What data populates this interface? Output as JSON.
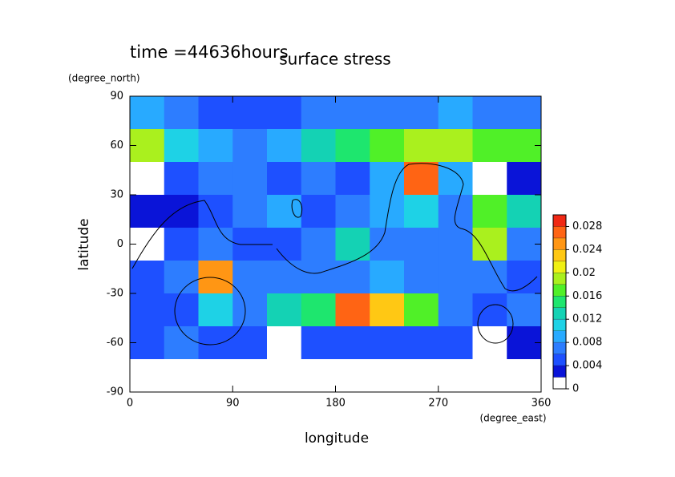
{
  "chart_data": {
    "type": "contour",
    "time_label": "time =44636hours",
    "title": "surface stress",
    "y_unit": "(degree_north)",
    "y_label": "latitude",
    "x_label": "longitude",
    "x_unit": "(degree_east)",
    "xlim": [
      0,
      360
    ],
    "xticks": [
      0,
      90,
      180,
      270,
      360
    ],
    "ylim": [
      -90,
      90
    ],
    "yticks": [
      -90,
      -60,
      -30,
      0,
      30,
      60,
      90
    ],
    "x": [
      15,
      45,
      75,
      105,
      135,
      165,
      195,
      225,
      255,
      285,
      315,
      345
    ],
    "y": [
      80,
      60,
      40,
      20,
      0,
      -20,
      -40,
      -60,
      -80
    ],
    "z": [
      [
        0.008,
        0.006,
        0.005,
        0.005,
        0.005,
        0.006,
        0.006,
        0.006,
        0.006,
        0.008,
        0.006,
        0.006
      ],
      [
        0.018,
        0.01,
        0.008,
        0.006,
        0.008,
        0.012,
        0.014,
        0.016,
        0.018,
        0.018,
        0.016,
        0.016
      ],
      [
        0.001,
        0.004,
        0.006,
        0.006,
        0.004,
        0.006,
        0.004,
        0.008,
        0.026,
        0.008,
        0.001,
        0.002
      ],
      [
        0.003,
        0.002,
        0.004,
        0.006,
        0.008,
        0.004,
        0.006,
        0.008,
        0.01,
        0.006,
        0.016,
        0.012
      ],
      [
        0.001,
        0.004,
        0.006,
        0.004,
        0.004,
        0.006,
        0.012,
        0.006,
        0.006,
        0.006,
        0.018,
        0.006
      ],
      [
        0.004,
        0.006,
        0.024,
        0.006,
        0.006,
        0.006,
        0.006,
        0.008,
        0.006,
        0.006,
        0.006,
        0.004
      ],
      [
        0.004,
        0.004,
        0.01,
        0.006,
        0.012,
        0.014,
        0.026,
        0.022,
        0.016,
        0.006,
        0.004,
        0.006
      ],
      [
        0.004,
        0.006,
        0.004,
        0.004,
        0.001,
        0.004,
        0.004,
        0.004,
        0.004,
        0.004,
        0.001,
        0.002
      ],
      [
        0,
        0,
        0,
        0,
        0,
        0,
        0,
        0,
        0,
        0,
        0,
        0
      ]
    ],
    "levels": [
      0,
      0.002,
      0.004,
      0.006,
      0.008,
      0.01,
      0.012,
      0.014,
      0.016,
      0.018,
      0.02,
      0.022,
      0.024,
      0.026,
      0.028,
      0.03
    ],
    "colors": [
      "#ffffff",
      "#0a14d8",
      "#1e50ff",
      "#2d7dff",
      "#28aaff",
      "#1ed2e6",
      "#14d2b4",
      "#1ee66e",
      "#50f028",
      "#aaf01e",
      "#f0f014",
      "#ffc814",
      "#ff9614",
      "#ff6414",
      "#f02814"
    ],
    "colorbar_ticks": [
      0,
      0.004,
      0.008,
      0.012,
      0.016,
      0.02,
      0.024,
      0.028
    ]
  }
}
